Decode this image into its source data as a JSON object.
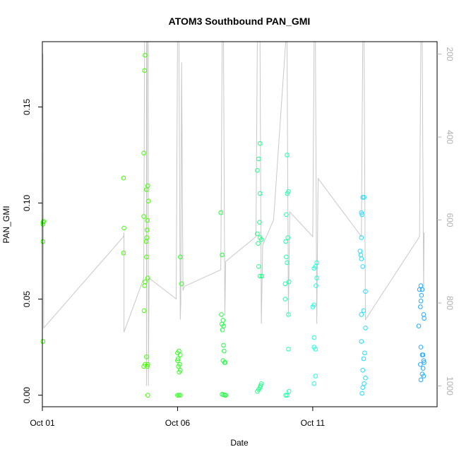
{
  "chart_data": {
    "type": "scatter",
    "title": "ATOM3 Southbound PAN_GMI",
    "xlabel": "Date",
    "ylabel": "PAN_GMI",
    "xlim": [
      0,
      14.6
    ],
    "ylim": [
      -0.006,
      0.184
    ],
    "x_ticks": [
      {
        "x": 0,
        "label": "Oct 01"
      },
      {
        "x": 5,
        "label": "Oct 06"
      },
      {
        "x": 10,
        "label": "Oct 11"
      }
    ],
    "y_ticks": [
      {
        "y": 0.0,
        "label": "0.00"
      },
      {
        "y": 0.05,
        "label": "0.05"
      },
      {
        "y": 0.1,
        "label": "0.10"
      },
      {
        "y": 0.15,
        "label": "0.15"
      }
    ],
    "right_axis": {
      "label": "",
      "lim": [
        1050,
        170
      ],
      "ticks": [
        {
          "v": 200,
          "label": "200"
        },
        {
          "v": 400,
          "label": "400"
        },
        {
          "v": 600,
          "label": "600"
        },
        {
          "v": 800,
          "label": "800"
        },
        {
          "v": 1000,
          "label": "1000"
        }
      ]
    },
    "grid": false,
    "points": [
      {
        "x": 0.02,
        "y": 0.09,
        "c": "#33ff00"
      },
      {
        "x": 0.05,
        "y": 0.0905,
        "c": "#33ff00"
      },
      {
        "x": 0.02,
        "y": 0.089,
        "c": "#33ff00"
      },
      {
        "x": 0.02,
        "y": 0.08,
        "c": "#33ff00"
      },
      {
        "x": 0.02,
        "y": 0.028,
        "c": "#33ff00"
      },
      {
        "x": 3.0,
        "y": 0.113,
        "c": "#44ff00"
      },
      {
        "x": 3.02,
        "y": 0.087,
        "c": "#44ff00"
      },
      {
        "x": 3.0,
        "y": 0.074,
        "c": "#44ff00"
      },
      {
        "x": 3.8,
        "y": 0.177,
        "c": "#44ff00"
      },
      {
        "x": 3.78,
        "y": 0.169,
        "c": "#44ff00"
      },
      {
        "x": 3.75,
        "y": 0.126,
        "c": "#44ff00"
      },
      {
        "x": 3.9,
        "y": 0.109,
        "c": "#44ff00"
      },
      {
        "x": 3.85,
        "y": 0.107,
        "c": "#44ff00"
      },
      {
        "x": 3.92,
        "y": 0.101,
        "c": "#44ff00"
      },
      {
        "x": 3.75,
        "y": 0.093,
        "c": "#44ff00"
      },
      {
        "x": 3.88,
        "y": 0.091,
        "c": "#44ff00"
      },
      {
        "x": 3.87,
        "y": 0.086,
        "c": "#44ff00"
      },
      {
        "x": 3.86,
        "y": 0.082,
        "c": "#44ff00"
      },
      {
        "x": 3.84,
        "y": 0.08,
        "c": "#44ff00"
      },
      {
        "x": 3.85,
        "y": 0.072,
        "c": "#44ff00"
      },
      {
        "x": 3.9,
        "y": 0.061,
        "c": "#44ff00"
      },
      {
        "x": 3.8,
        "y": 0.059,
        "c": "#44ff00"
      },
      {
        "x": 3.78,
        "y": 0.057,
        "c": "#44ff00"
      },
      {
        "x": 3.76,
        "y": 0.044,
        "c": "#44ff00"
      },
      {
        "x": 3.85,
        "y": 0.02,
        "c": "#44ff00"
      },
      {
        "x": 3.8,
        "y": 0.016,
        "c": "#44ff00"
      },
      {
        "x": 3.75,
        "y": 0.015,
        "c": "#44ff00"
      },
      {
        "x": 3.9,
        "y": 0.016,
        "c": "#44ff00"
      },
      {
        "x": 3.88,
        "y": 0.015,
        "c": "#44ff00"
      },
      {
        "x": 3.9,
        "y": 0.0,
        "c": "#44ff00"
      },
      {
        "x": 5.1,
        "y": 0.072,
        "c": "#33ff22"
      },
      {
        "x": 5.15,
        "y": 0.058,
        "c": "#33ff22"
      },
      {
        "x": 5.05,
        "y": 0.023,
        "c": "#33ff22"
      },
      {
        "x": 5.0,
        "y": 0.022,
        "c": "#33ff22"
      },
      {
        "x": 5.1,
        "y": 0.021,
        "c": "#33ff22"
      },
      {
        "x": 5.02,
        "y": 0.019,
        "c": "#33ff22"
      },
      {
        "x": 5.0,
        "y": 0.018,
        "c": "#33ff22"
      },
      {
        "x": 5.08,
        "y": 0.016,
        "c": "#33ff22"
      },
      {
        "x": 5.03,
        "y": 0.015,
        "c": "#33ff22"
      },
      {
        "x": 5.1,
        "y": 0.013,
        "c": "#33ff22"
      },
      {
        "x": 5.06,
        "y": 0.012,
        "c": "#33ff22"
      },
      {
        "x": 5.0,
        "y": 0.0,
        "c": "#33ff22"
      },
      {
        "x": 5.05,
        "y": 0.0,
        "c": "#33ff22"
      },
      {
        "x": 5.1,
        "y": 0.0,
        "c": "#33ff22"
      },
      {
        "x": 6.6,
        "y": 0.095,
        "c": "#22ff44"
      },
      {
        "x": 6.65,
        "y": 0.073,
        "c": "#22ff44"
      },
      {
        "x": 6.62,
        "y": 0.042,
        "c": "#22ff44"
      },
      {
        "x": 6.68,
        "y": 0.039,
        "c": "#22ff44"
      },
      {
        "x": 6.64,
        "y": 0.037,
        "c": "#22ff44"
      },
      {
        "x": 6.7,
        "y": 0.036,
        "c": "#22ff44"
      },
      {
        "x": 6.66,
        "y": 0.034,
        "c": "#22ff44"
      },
      {
        "x": 6.7,
        "y": 0.026,
        "c": "#22ff44"
      },
      {
        "x": 6.72,
        "y": 0.023,
        "c": "#22ff44"
      },
      {
        "x": 6.68,
        "y": 0.018,
        "c": "#22ff44"
      },
      {
        "x": 6.74,
        "y": 0.017,
        "c": "#22ff44"
      },
      {
        "x": 6.76,
        "y": 0.017,
        "c": "#22ff44"
      },
      {
        "x": 6.65,
        "y": 0.0005,
        "c": "#22ff44"
      },
      {
        "x": 6.7,
        "y": 0.0003,
        "c": "#22ff44"
      },
      {
        "x": 6.75,
        "y": 0.0,
        "c": "#22ff44"
      },
      {
        "x": 6.78,
        "y": 0.0,
        "c": "#22ff44"
      },
      {
        "x": 8.05,
        "y": 0.131,
        "c": "#22ff88"
      },
      {
        "x": 8.0,
        "y": 0.123,
        "c": "#22ff88"
      },
      {
        "x": 7.95,
        "y": 0.117,
        "c": "#22ff88"
      },
      {
        "x": 8.05,
        "y": 0.105,
        "c": "#22ff88"
      },
      {
        "x": 8.03,
        "y": 0.09,
        "c": "#22ff88"
      },
      {
        "x": 7.95,
        "y": 0.084,
        "c": "#22ff88"
      },
      {
        "x": 8.05,
        "y": 0.082,
        "c": "#22ff88"
      },
      {
        "x": 8.1,
        "y": 0.081,
        "c": "#22ff88"
      },
      {
        "x": 7.98,
        "y": 0.079,
        "c": "#22ff88"
      },
      {
        "x": 8.0,
        "y": 0.067,
        "c": "#22ff88"
      },
      {
        "x": 8.05,
        "y": 0.062,
        "c": "#22ff88"
      },
      {
        "x": 8.12,
        "y": 0.062,
        "c": "#22ff88"
      },
      {
        "x": 8.1,
        "y": 0.006,
        "c": "#22ff88"
      },
      {
        "x": 8.07,
        "y": 0.005,
        "c": "#22ff88"
      },
      {
        "x": 8.05,
        "y": 0.004,
        "c": "#22ff88"
      },
      {
        "x": 8.0,
        "y": 0.003,
        "c": "#22ff88"
      },
      {
        "x": 7.95,
        "y": 0.002,
        "c": "#22ff88"
      },
      {
        "x": 9.05,
        "y": 0.125,
        "c": "#22ffaa"
      },
      {
        "x": 9.1,
        "y": 0.106,
        "c": "#22ffaa"
      },
      {
        "x": 9.06,
        "y": 0.105,
        "c": "#22ffaa"
      },
      {
        "x": 9.02,
        "y": 0.094,
        "c": "#22ffaa"
      },
      {
        "x": 9.08,
        "y": 0.082,
        "c": "#22ffaa"
      },
      {
        "x": 9.0,
        "y": 0.08,
        "c": "#22ffaa"
      },
      {
        "x": 9.02,
        "y": 0.072,
        "c": "#22ffaa"
      },
      {
        "x": 9.05,
        "y": 0.069,
        "c": "#22ffaa"
      },
      {
        "x": 9.12,
        "y": 0.059,
        "c": "#22ffaa"
      },
      {
        "x": 8.98,
        "y": 0.058,
        "c": "#22ffaa"
      },
      {
        "x": 8.98,
        "y": 0.05,
        "c": "#22ffaa"
      },
      {
        "x": 9.1,
        "y": 0.042,
        "c": "#22ffaa"
      },
      {
        "x": 9.1,
        "y": 0.024,
        "c": "#22ffaa"
      },
      {
        "x": 9.12,
        "y": 0.002,
        "c": "#22ffaa"
      },
      {
        "x": 9.05,
        "y": 0.0,
        "c": "#22ffaa"
      },
      {
        "x": 9.0,
        "y": 0.0,
        "c": "#22ffaa"
      },
      {
        "x": 10.15,
        "y": 0.069,
        "c": "#22ffdd"
      },
      {
        "x": 10.1,
        "y": 0.067,
        "c": "#22ffdd"
      },
      {
        "x": 10.05,
        "y": 0.066,
        "c": "#22ffdd"
      },
      {
        "x": 10.15,
        "y": 0.061,
        "c": "#22ffdd"
      },
      {
        "x": 10.12,
        "y": 0.057,
        "c": "#22ffdd"
      },
      {
        "x": 10.05,
        "y": 0.047,
        "c": "#22ffdd"
      },
      {
        "x": 10.0,
        "y": 0.046,
        "c": "#22ffdd"
      },
      {
        "x": 10.05,
        "y": 0.03,
        "c": "#22ffdd"
      },
      {
        "x": 10.05,
        "y": 0.025,
        "c": "#22ffdd"
      },
      {
        "x": 10.1,
        "y": 0.024,
        "c": "#22ffdd"
      },
      {
        "x": 10.1,
        "y": 0.01,
        "c": "#22ffdd"
      },
      {
        "x": 10.05,
        "y": 0.006,
        "c": "#22ffdd"
      },
      {
        "x": 11.85,
        "y": 0.103,
        "c": "#22ddff"
      },
      {
        "x": 11.9,
        "y": 0.103,
        "c": "#22ddff"
      },
      {
        "x": 11.8,
        "y": 0.095,
        "c": "#22ddff"
      },
      {
        "x": 11.82,
        "y": 0.094,
        "c": "#22ddff"
      },
      {
        "x": 11.8,
        "y": 0.082,
        "c": "#22ddff"
      },
      {
        "x": 11.75,
        "y": 0.075,
        "c": "#22ddff"
      },
      {
        "x": 11.78,
        "y": 0.073,
        "c": "#22ddff"
      },
      {
        "x": 11.8,
        "y": 0.071,
        "c": "#22ddff"
      },
      {
        "x": 11.85,
        "y": 0.067,
        "c": "#22ddff"
      },
      {
        "x": 11.95,
        "y": 0.054,
        "c": "#22ddff"
      },
      {
        "x": 11.88,
        "y": 0.044,
        "c": "#22ddff"
      },
      {
        "x": 11.8,
        "y": 0.042,
        "c": "#22ddff"
      },
      {
        "x": 11.95,
        "y": 0.035,
        "c": "#22ddff"
      },
      {
        "x": 11.8,
        "y": 0.028,
        "c": "#22ddff"
      },
      {
        "x": 11.92,
        "y": 0.022,
        "c": "#22ddff"
      },
      {
        "x": 11.88,
        "y": 0.019,
        "c": "#22ddff"
      },
      {
        "x": 11.85,
        "y": 0.013,
        "c": "#22ddff"
      },
      {
        "x": 11.95,
        "y": 0.009,
        "c": "#22ddff"
      },
      {
        "x": 11.9,
        "y": 0.006,
        "c": "#22ddff"
      },
      {
        "x": 11.85,
        "y": 0.004,
        "c": "#22ddff"
      },
      {
        "x": 11.82,
        "y": 0.001,
        "c": "#22ddff"
      },
      {
        "x": 14.0,
        "y": 0.057,
        "c": "#22aaff"
      },
      {
        "x": 13.95,
        "y": 0.055,
        "c": "#22aaff"
      },
      {
        "x": 14.05,
        "y": 0.055,
        "c": "#22aaff"
      },
      {
        "x": 14.02,
        "y": 0.052,
        "c": "#22aaff"
      },
      {
        "x": 14.0,
        "y": 0.049,
        "c": "#22aaff"
      },
      {
        "x": 13.98,
        "y": 0.046,
        "c": "#22aaff"
      },
      {
        "x": 14.1,
        "y": 0.042,
        "c": "#22aaff"
      },
      {
        "x": 14.12,
        "y": 0.04,
        "c": "#22aaff"
      },
      {
        "x": 13.92,
        "y": 0.036,
        "c": "#22aaff"
      },
      {
        "x": 14.0,
        "y": 0.025,
        "c": "#22aaff"
      },
      {
        "x": 14.05,
        "y": 0.021,
        "c": "#22aaff"
      },
      {
        "x": 14.08,
        "y": 0.021,
        "c": "#22aaff"
      },
      {
        "x": 14.1,
        "y": 0.018,
        "c": "#22aaff"
      },
      {
        "x": 14.12,
        "y": 0.017,
        "c": "#22aaff"
      },
      {
        "x": 13.98,
        "y": 0.016,
        "c": "#22aaff"
      },
      {
        "x": 14.08,
        "y": 0.014,
        "c": "#22aaff"
      },
      {
        "x": 14.05,
        "y": 0.011,
        "c": "#22aaff"
      },
      {
        "x": 14.1,
        "y": 0.01,
        "c": "#22aaff"
      },
      {
        "x": 14.0,
        "y": 0.008,
        "c": "#22aaff"
      }
    ],
    "pressure_trace": [
      [
        0.0,
        1050
      ],
      [
        0.0,
        200
      ],
      [
        0.02,
        200
      ],
      [
        0.05,
        860
      ],
      [
        3.0,
        640
      ],
      [
        3.02,
        630
      ],
      [
        3.02,
        870
      ],
      [
        3.75,
        740
      ],
      [
        3.78,
        170
      ],
      [
        3.85,
        170
      ],
      [
        3.85,
        1000
      ],
      [
        3.88,
        170
      ],
      [
        3.92,
        170
      ],
      [
        3.92,
        1000
      ],
      [
        3.95,
        740
      ],
      [
        4.95,
        790
      ],
      [
        5.0,
        170
      ],
      [
        5.05,
        170
      ],
      [
        5.1,
        840
      ],
      [
        5.12,
        800
      ],
      [
        5.15,
        220
      ],
      [
        5.2,
        770
      ],
      [
        5.25,
        760
      ],
      [
        6.6,
        720
      ],
      [
        6.65,
        170
      ],
      [
        6.7,
        170
      ],
      [
        6.75,
        830
      ],
      [
        6.78,
        700
      ],
      [
        7.9,
        640
      ],
      [
        7.95,
        170
      ],
      [
        8.05,
        170
      ],
      [
        8.1,
        850
      ],
      [
        8.15,
        660
      ],
      [
        8.55,
        600
      ],
      [
        9.0,
        170
      ],
      [
        9.05,
        170
      ],
      [
        9.1,
        830
      ],
      [
        9.15,
        580
      ],
      [
        10.0,
        640
      ],
      [
        10.05,
        170
      ],
      [
        10.1,
        170
      ],
      [
        10.15,
        850
      ],
      [
        10.2,
        500
      ],
      [
        11.8,
        640
      ],
      [
        11.85,
        170
      ],
      [
        11.9,
        170
      ],
      [
        11.95,
        840
      ],
      [
        13.95,
        640
      ],
      [
        14.0,
        170
      ],
      [
        14.05,
        170
      ],
      [
        14.1,
        770
      ],
      [
        14.12,
        630
      ]
    ]
  }
}
